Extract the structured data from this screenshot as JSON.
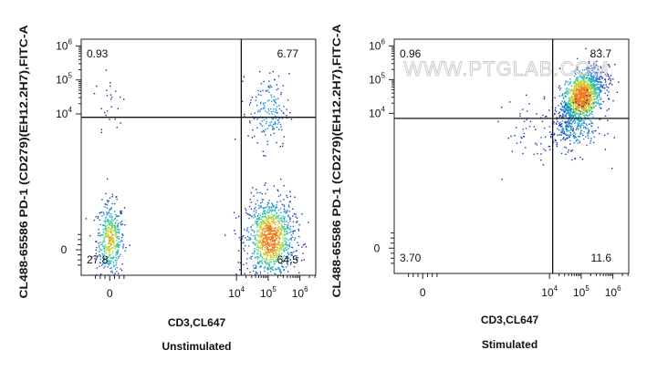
{
  "watermark": "WWW.PTGLAB.COM",
  "chart_data": [
    {
      "type": "scatter",
      "title": "Unstimulated",
      "xlabel": "CD3,CL647",
      "ylabel": "CL488-65586 PD-1 (CD279)(EH12.2H7),FITC-A",
      "x_ticks": [
        {
          "pos": 0,
          "base": "0",
          "exp": ""
        },
        {
          "pos": 4,
          "base": "10",
          "exp": "4"
        },
        {
          "pos": 5,
          "base": "10",
          "exp": "5"
        },
        {
          "pos": 6,
          "base": "10",
          "exp": "6"
        }
      ],
      "y_ticks": [
        {
          "pos": 0,
          "base": "0",
          "exp": ""
        },
        {
          "pos": 4,
          "base": "10",
          "exp": "4"
        },
        {
          "pos": 5,
          "base": "10",
          "exp": "5"
        },
        {
          "pos": 6,
          "base": "10",
          "exp": "6"
        }
      ],
      "gate": {
        "x": 4.15,
        "y": 3.9
      },
      "quadrants": {
        "top_left": "0.93",
        "top_right": "6.77",
        "bottom_left": "27.8",
        "bottom_right": "64.5"
      },
      "populations": [
        {
          "x": 0.0,
          "y": 0.3,
          "sx": 0.22,
          "sy": 0.55,
          "n": 450
        },
        {
          "x": 5.05,
          "y": 0.35,
          "sx": 0.38,
          "sy": 0.6,
          "n": 1100
        },
        {
          "x": 5.0,
          "y": 4.1,
          "sx": 0.32,
          "sy": 0.55,
          "n": 180
        },
        {
          "x": 0.0,
          "y": 4.3,
          "sx": 0.25,
          "sy": 0.6,
          "n": 25
        }
      ]
    },
    {
      "type": "scatter",
      "title": "Stimulated",
      "xlabel": "CD3,CL647",
      "ylabel": "CL488-65586 PD-1 (CD279)(EH12.2H7),FITC-A",
      "x_ticks": [
        {
          "pos": 0,
          "base": "0",
          "exp": ""
        },
        {
          "pos": 4,
          "base": "10",
          "exp": "4"
        },
        {
          "pos": 5,
          "base": "10",
          "exp": "5"
        },
        {
          "pos": 6,
          "base": "10",
          "exp": "6"
        }
      ],
      "y_ticks": [
        {
          "pos": 0,
          "base": "0",
          "exp": ""
        },
        {
          "pos": 4,
          "base": "10",
          "exp": "4"
        },
        {
          "pos": 5,
          "base": "10",
          "exp": "5"
        },
        {
          "pos": 6,
          "base": "10",
          "exp": "6"
        }
      ],
      "gate": {
        "x": 4.1,
        "y": 3.85
      },
      "quadrants": {
        "top_left": "0.96",
        "top_right": "83.7",
        "bottom_left": "3.70",
        "bottom_right": "11.6"
      },
      "populations": [
        {
          "x": 5.0,
          "y": 4.5,
          "sx": 0.35,
          "sy": 0.45,
          "n": 1300,
          "rho": 0.55
        },
        {
          "x": 4.8,
          "y": 3.6,
          "sx": 0.45,
          "sy": 0.4,
          "n": 220
        },
        {
          "x": 3.6,
          "y": 3.4,
          "sx": 0.5,
          "sy": 0.5,
          "n": 60
        }
      ]
    }
  ]
}
